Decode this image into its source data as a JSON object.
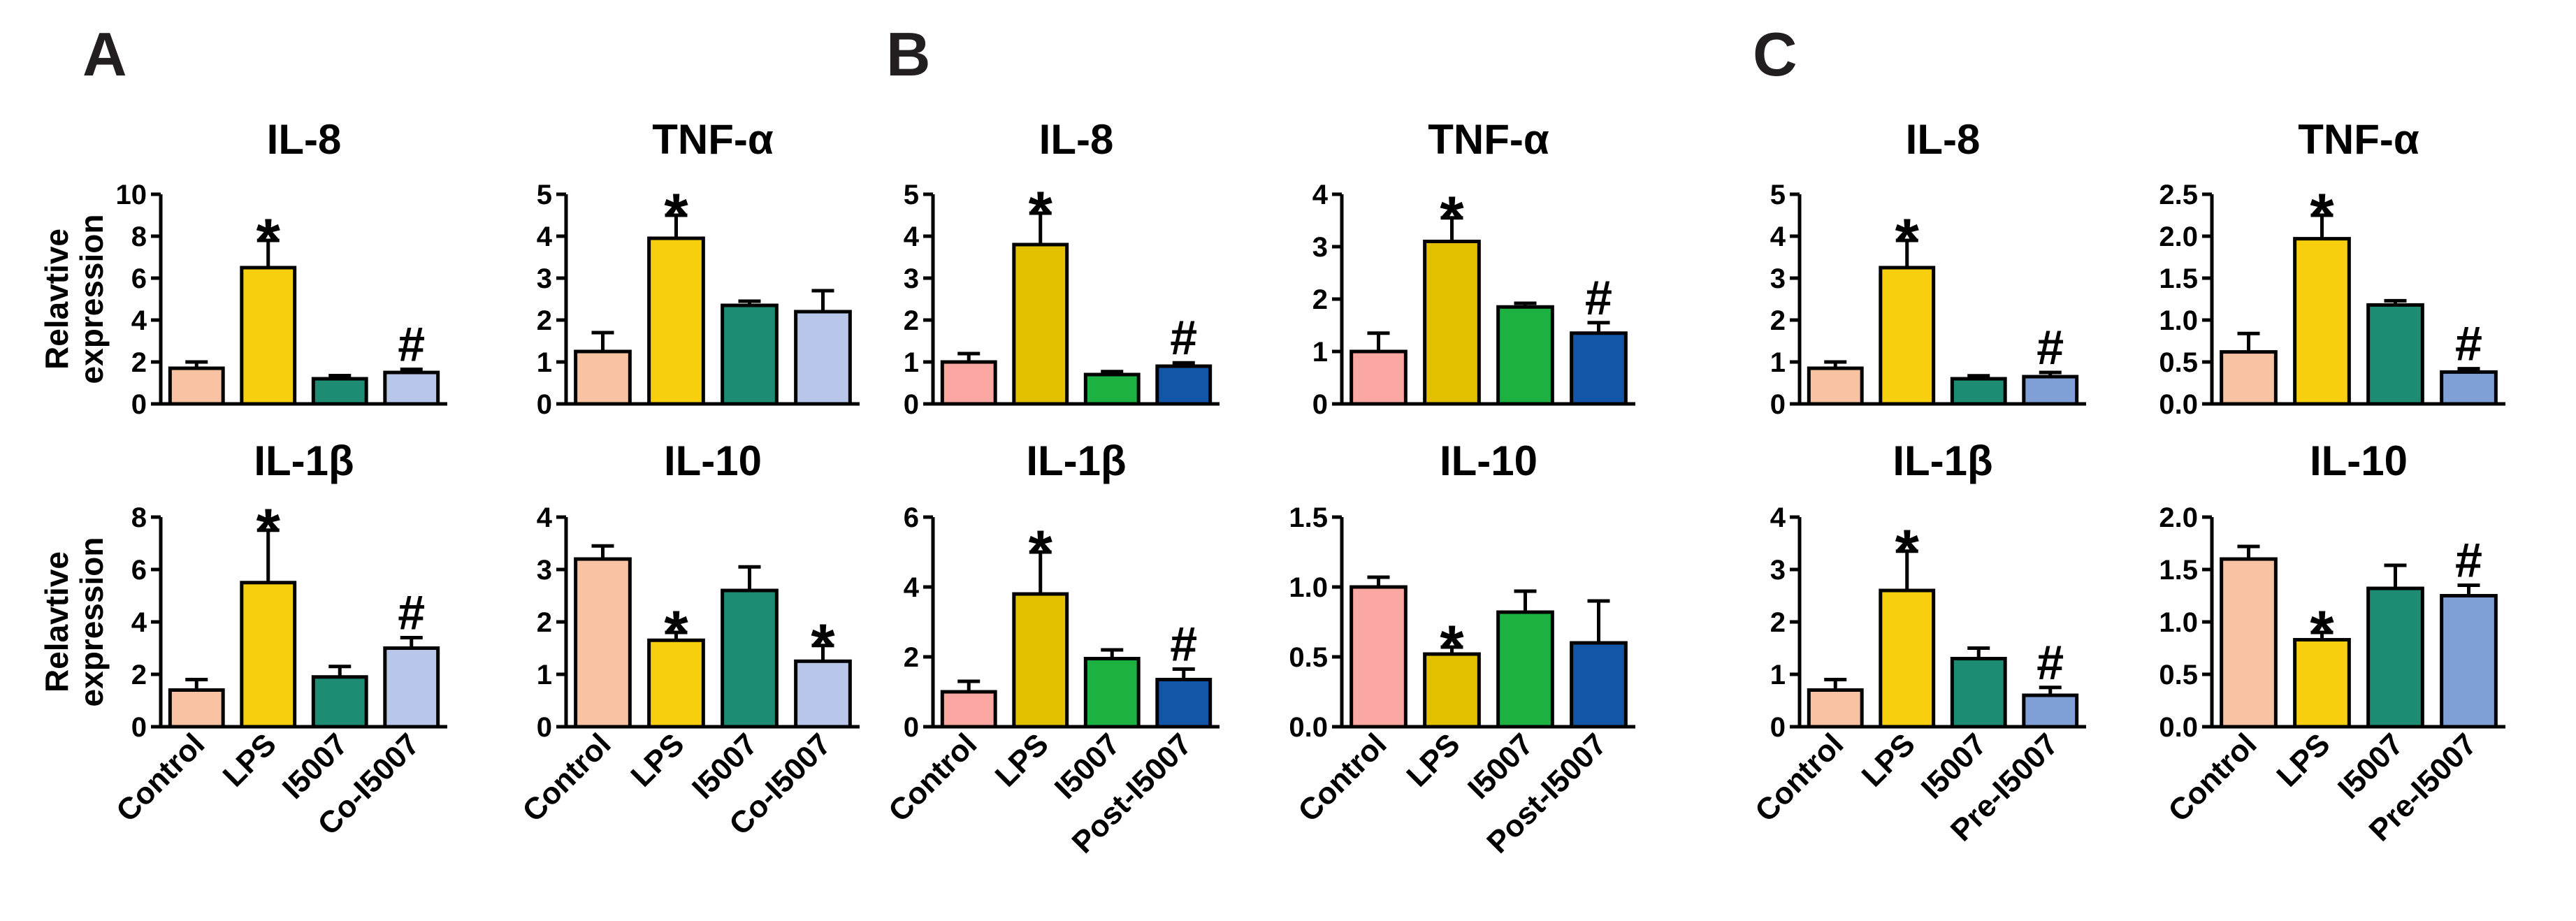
{
  "panels": [
    {
      "letter": "A"
    },
    {
      "letter": "B"
    },
    {
      "letter": "C"
    }
  ],
  "ylabel_lines": [
    "Relavtive",
    "expression"
  ],
  "chart_data": [
    {
      "panel": "A",
      "type": "bar",
      "title": "IL-8",
      "categories": [
        "Control",
        "LPS",
        "I5007",
        "Co-I5007"
      ],
      "values": [
        1.7,
        6.5,
        1.2,
        1.5
      ],
      "errors": [
        0.3,
        1.3,
        0.15,
        0.15
      ],
      "annotations": [
        "",
        "*",
        "",
        "#"
      ],
      "colors": [
        "#f9c3a3",
        "#f8cf0f",
        "#1e8c72",
        "#b8c6ea"
      ],
      "ylim": [
        0,
        10
      ],
      "yticks": [
        "0",
        "2",
        "4",
        "6",
        "8",
        "10"
      ],
      "ylabel": "Relavtive expression"
    },
    {
      "panel": "A",
      "type": "bar",
      "title": "TNF-α",
      "categories": [
        "Control",
        "LPS",
        "I5007",
        "Co-I5007"
      ],
      "values": [
        1.25,
        3.95,
        2.35,
        2.2
      ],
      "errors": [
        0.45,
        0.55,
        0.1,
        0.5
      ],
      "annotations": [
        "",
        "*",
        "",
        ""
      ],
      "colors": [
        "#f9c3a3",
        "#f8cf0f",
        "#1e8c72",
        "#b8c6ea"
      ],
      "ylim": [
        0,
        5
      ],
      "yticks": [
        "0",
        "1",
        "2",
        "3",
        "4",
        "5"
      ],
      "ylabel": ""
    },
    {
      "panel": "A",
      "type": "bar",
      "title": "IL-1β",
      "categories": [
        "Control",
        "LPS",
        "I5007",
        "Co-I5007"
      ],
      "values": [
        1.4,
        5.5,
        1.9,
        3.0
      ],
      "errors": [
        0.4,
        2.0,
        0.4,
        0.4
      ],
      "annotations": [
        "",
        "*",
        "",
        "#"
      ],
      "colors": [
        "#f9c3a3",
        "#f8cf0f",
        "#1e8c72",
        "#b8c6ea"
      ],
      "ylim": [
        0,
        8
      ],
      "yticks": [
        "0",
        "2",
        "4",
        "6",
        "8"
      ],
      "ylabel": "Relavtive expression"
    },
    {
      "panel": "A",
      "type": "bar",
      "title": "IL-10",
      "categories": [
        "Control",
        "LPS",
        "I5007",
        "Co-I5007"
      ],
      "values": [
        3.2,
        1.65,
        2.6,
        1.25
      ],
      "errors": [
        0.25,
        0.15,
        0.45,
        0.3
      ],
      "annotations": [
        "",
        "*",
        "",
        "*"
      ],
      "colors": [
        "#f9c3a3",
        "#f8cf0f",
        "#1e8c72",
        "#b8c6ea"
      ],
      "ylim": [
        0,
        4
      ],
      "yticks": [
        "0",
        "1",
        "2",
        "3",
        "4"
      ],
      "ylabel": ""
    },
    {
      "panel": "B",
      "type": "bar",
      "title": "IL-8",
      "categories": [
        "Control",
        "LPS",
        "I5007",
        "Post-I5007"
      ],
      "values": [
        1.0,
        3.8,
        0.7,
        0.9
      ],
      "errors": [
        0.2,
        0.75,
        0.07,
        0.08
      ],
      "annotations": [
        "",
        "*",
        "",
        "#"
      ],
      "colors": [
        "#fba8a3",
        "#e2c000",
        "#1db142",
        "#1356a8"
      ],
      "ylim": [
        0,
        5
      ],
      "yticks": [
        "0",
        "1",
        "2",
        "3",
        "4",
        "5"
      ],
      "ylabel": ""
    },
    {
      "panel": "B",
      "type": "bar",
      "title": "TNF-α",
      "categories": [
        "Control",
        "LPS",
        "I5007",
        "Post-I5007"
      ],
      "values": [
        1.0,
        3.1,
        1.85,
        1.35
      ],
      "errors": [
        0.35,
        0.45,
        0.07,
        0.2
      ],
      "annotations": [
        "",
        "*",
        "",
        "#"
      ],
      "colors": [
        "#fba8a3",
        "#e2c000",
        "#1db142",
        "#1356a8"
      ],
      "ylim": [
        0,
        4
      ],
      "yticks": [
        "0",
        "1",
        "2",
        "3",
        "4"
      ],
      "ylabel": ""
    },
    {
      "panel": "B",
      "type": "bar",
      "title": "IL-1β",
      "categories": [
        "Control",
        "LPS",
        "I5007",
        "Post-I5007"
      ],
      "values": [
        1.0,
        3.8,
        1.95,
        1.35
      ],
      "errors": [
        0.3,
        1.2,
        0.25,
        0.3
      ],
      "annotations": [
        "",
        "*",
        "",
        "#"
      ],
      "colors": [
        "#fba8a3",
        "#e2c000",
        "#1db142",
        "#1356a8"
      ],
      "ylim": [
        0,
        6
      ],
      "yticks": [
        "0",
        "2",
        "4",
        "6"
      ],
      "ylabel": ""
    },
    {
      "panel": "B",
      "type": "bar",
      "title": "IL-10",
      "categories": [
        "Control",
        "LPS",
        "I5007",
        "Post-I5007"
      ],
      "values": [
        1.0,
        0.52,
        0.82,
        0.6
      ],
      "errors": [
        0.07,
        0.05,
        0.15,
        0.3
      ],
      "annotations": [
        "",
        "*",
        "",
        ""
      ],
      "colors": [
        "#fba8a3",
        "#e2c000",
        "#1db142",
        "#1356a8"
      ],
      "ylim": [
        0,
        1.5
      ],
      "yticks": [
        "0.0",
        "0.5",
        "1.0",
        "1.5"
      ],
      "ylabel": ""
    },
    {
      "panel": "C",
      "type": "bar",
      "title": "IL-8",
      "categories": [
        "Control",
        "LPS",
        "I5007",
        "Pre-I5007"
      ],
      "values": [
        0.85,
        3.25,
        0.6,
        0.65
      ],
      "errors": [
        0.15,
        0.65,
        0.07,
        0.1
      ],
      "annotations": [
        "",
        "*",
        "",
        "#"
      ],
      "colors": [
        "#f9c3a3",
        "#f8cf0f",
        "#1e8c72",
        "#7f9fd6"
      ],
      "ylim": [
        0,
        5
      ],
      "yticks": [
        "0",
        "1",
        "2",
        "3",
        "4",
        "5"
      ],
      "ylabel": ""
    },
    {
      "panel": "C",
      "type": "bar",
      "title": "TNF-α",
      "categories": [
        "Control",
        "LPS",
        "I5007",
        "Pre-I5007"
      ],
      "values": [
        0.62,
        1.97,
        1.18,
        0.38
      ],
      "errors": [
        0.22,
        0.28,
        0.05,
        0.04
      ],
      "annotations": [
        "",
        "*",
        "",
        "#"
      ],
      "colors": [
        "#f9c3a3",
        "#f8cf0f",
        "#1e8c72",
        "#7f9fd6"
      ],
      "ylim": [
        0,
        2.5
      ],
      "yticks": [
        "0.0",
        "0.5",
        "1.0",
        "1.5",
        "2.0",
        "2.5"
      ],
      "ylabel": ""
    },
    {
      "panel": "C",
      "type": "bar",
      "title": "IL-1β",
      "categories": [
        "Control",
        "LPS",
        "I5007",
        "Pre-I5007"
      ],
      "values": [
        0.7,
        2.6,
        1.3,
        0.6
      ],
      "errors": [
        0.2,
        0.75,
        0.2,
        0.15
      ],
      "annotations": [
        "",
        "*",
        "",
        "#"
      ],
      "colors": [
        "#f9c3a3",
        "#f8cf0f",
        "#1e8c72",
        "#7f9fd6"
      ],
      "ylim": [
        0,
        4
      ],
      "yticks": [
        "0",
        "1",
        "2",
        "3",
        "4"
      ],
      "ylabel": ""
    },
    {
      "panel": "C",
      "type": "bar",
      "title": "IL-10",
      "categories": [
        "Control",
        "LPS",
        "I5007",
        "Pre-I5007"
      ],
      "values": [
        1.6,
        0.83,
        1.32,
        1.25
      ],
      "errors": [
        0.12,
        0.07,
        0.22,
        0.1
      ],
      "annotations": [
        "",
        "*",
        "",
        "#"
      ],
      "colors": [
        "#f9c3a3",
        "#f8cf0f",
        "#1e8c72",
        "#7f9fd6"
      ],
      "ylim": [
        0,
        2.0
      ],
      "yticks": [
        "0.0",
        "0.5",
        "1.0",
        "1.5",
        "2.0"
      ],
      "ylabel": ""
    }
  ]
}
